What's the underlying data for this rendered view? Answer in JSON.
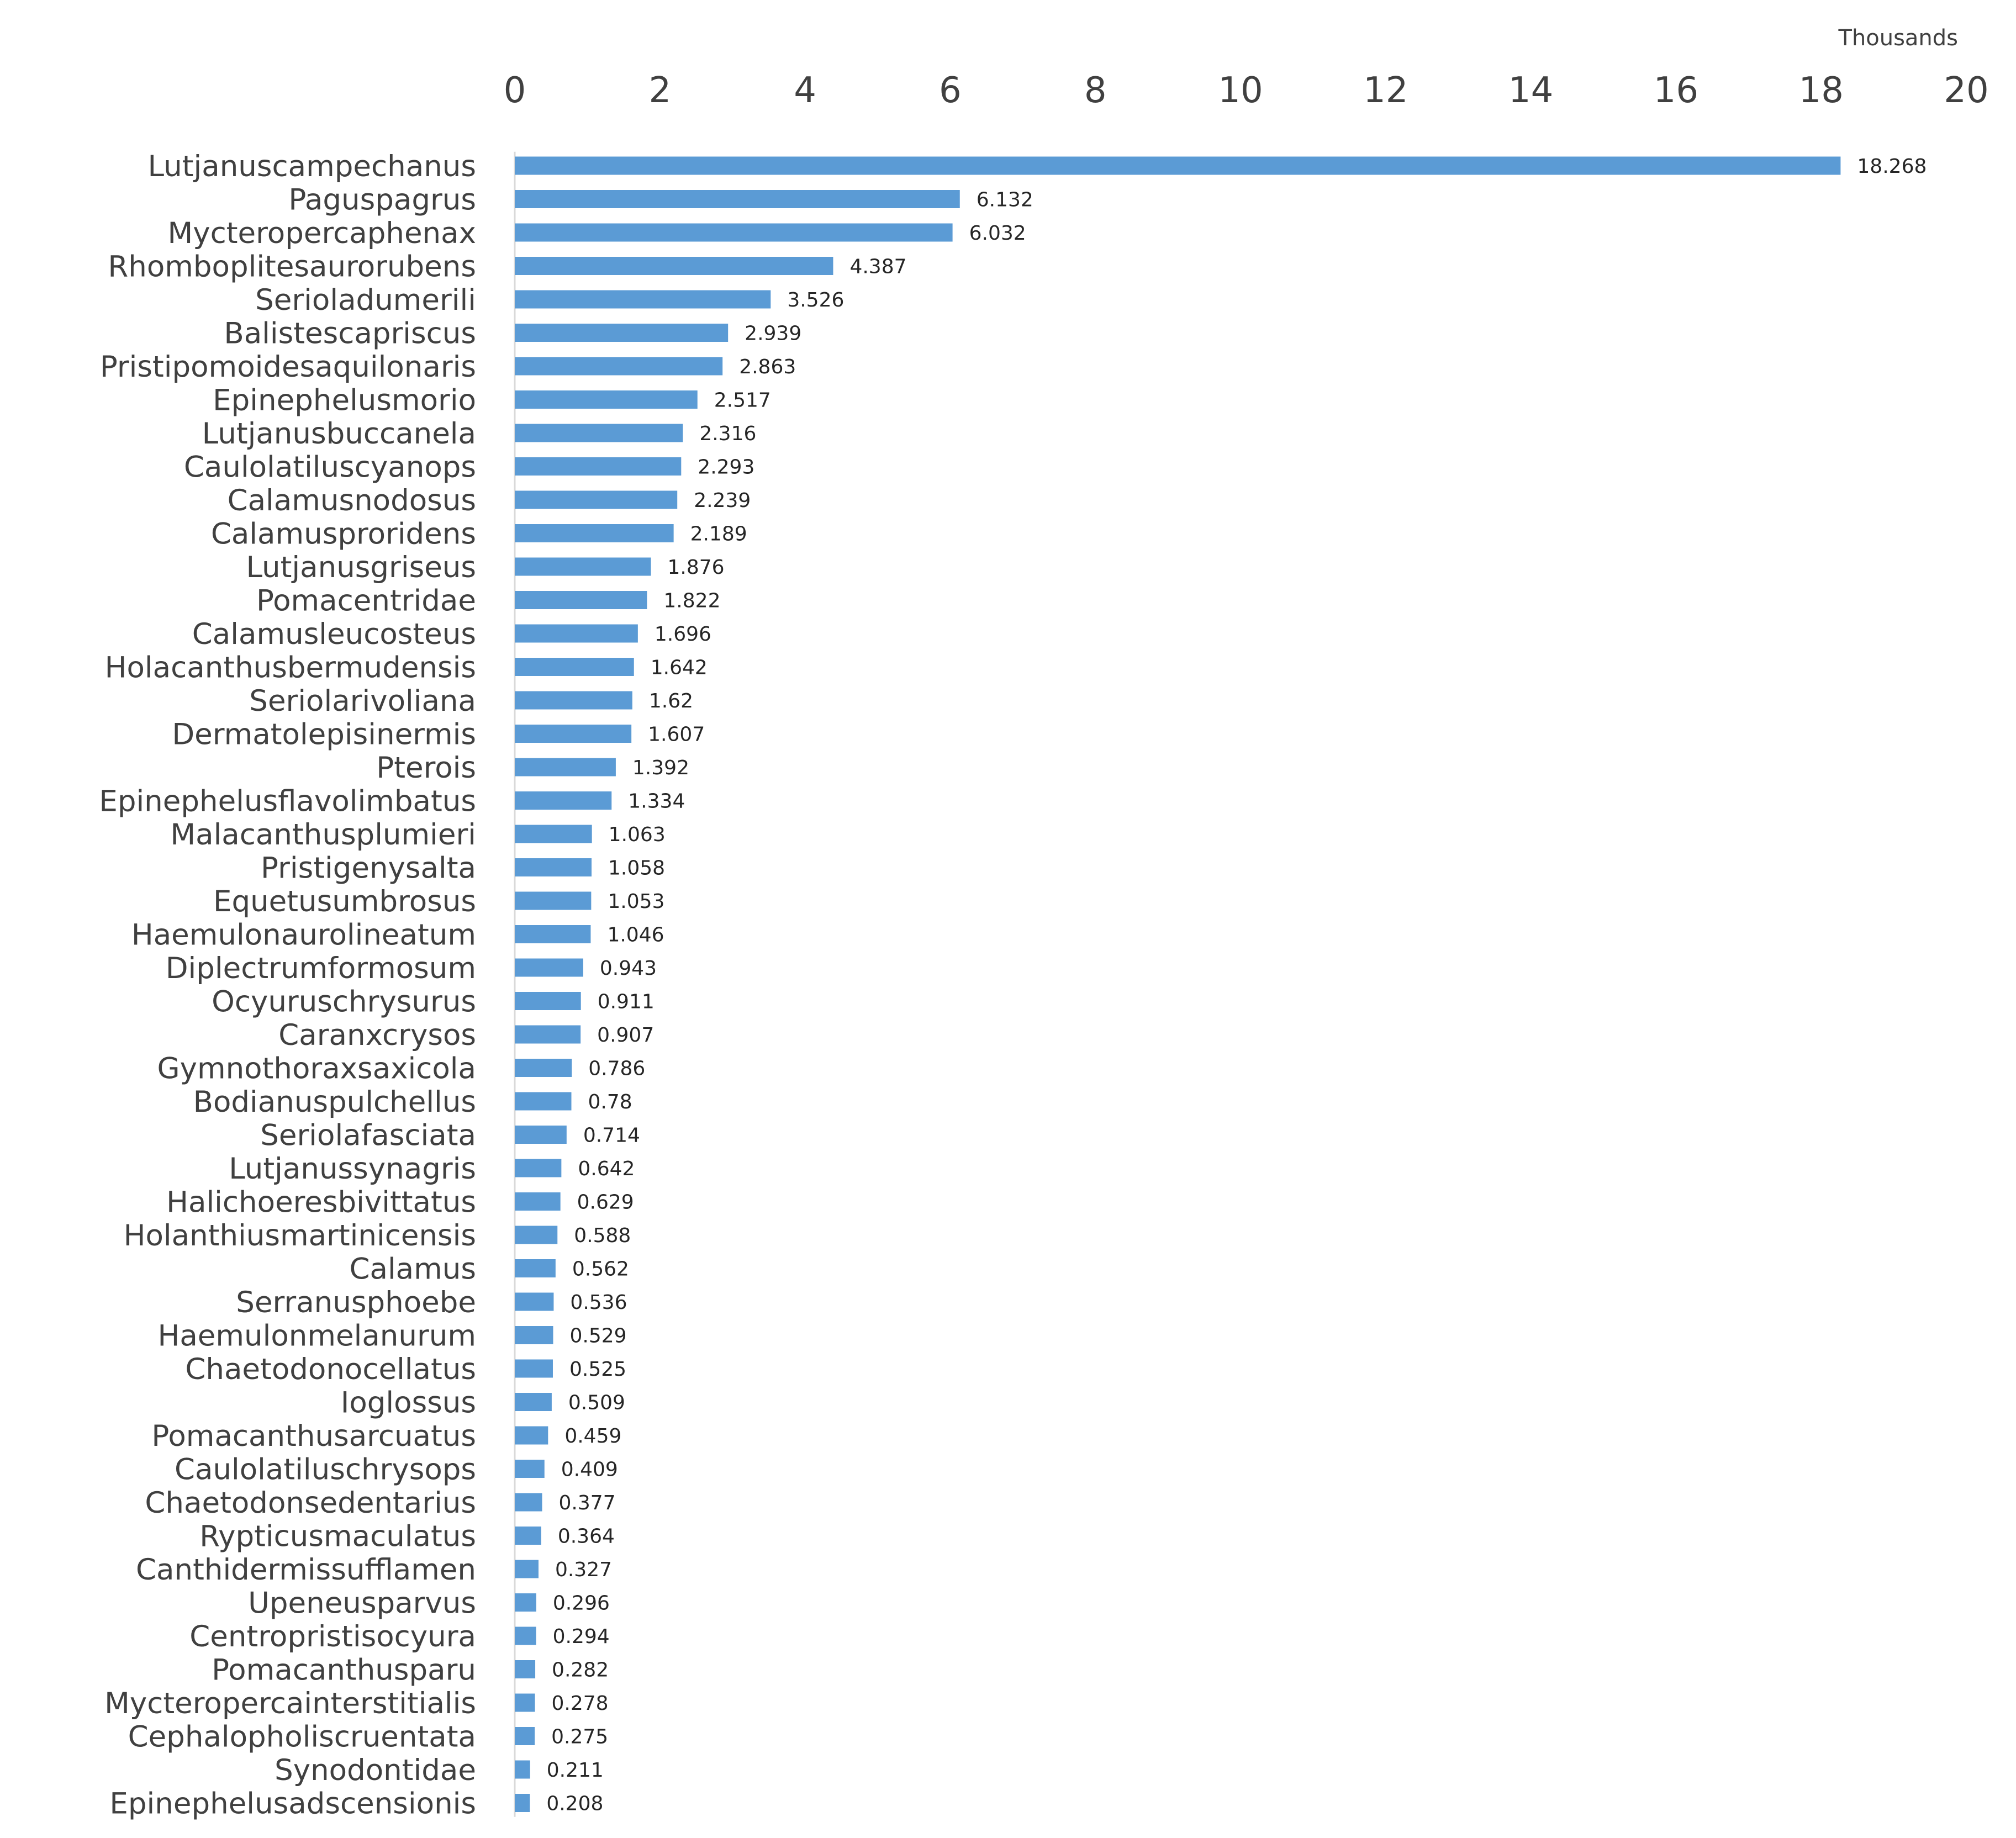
{
  "chart_data": {
    "type": "bar",
    "orientation": "horizontal",
    "axis_unit": "Thousands",
    "xlim": [
      0,
      20
    ],
    "x_ticks": [
      0,
      2,
      4,
      6,
      8,
      10,
      12,
      14,
      16,
      18,
      20
    ],
    "x_axis_position": "top",
    "grid": false,
    "bar_color": "#5b9bd5",
    "categories": [
      "Lutjanuscampechanus",
      "Paguspagrus",
      "Mycteropercaphenax",
      "Rhomboplitesaurorubens",
      "Serioladumerili",
      "Balistescapriscus",
      "Pristipomoidesaquilonaris",
      "Epinephelusmorio",
      "Lutjanusbuccanela",
      "Caulolatiluscyanops",
      "Calamusnodosus",
      "Calamusproridens",
      "Lutjanusgriseus",
      "Pomacentridae",
      "Calamusleucosteus",
      "Holacanthusbermudensis",
      "Seriolarivoliana",
      "Dermatolepisinermis",
      "Pterois",
      "Epinephelusflavolimbatus",
      "Malacanthusplumieri",
      "Pristigenysalta",
      "Equetusumbrosus",
      "Haemulonaurolineatum",
      "Diplectrumformosum",
      "Ocyuruschrysurus",
      "Caranxcrysos",
      "Gymnothoraxsaxicola",
      "Bodianuspulchellus",
      "Seriolafasciata",
      "Lutjanussynagris",
      "Halichoeresbivittatus",
      "Holanthiusmartinicensis",
      "Calamus",
      "Serranusphoebe",
      "Haemulonmelanurum",
      "Chaetodonocellatus",
      "Ioglossus",
      "Pomacanthusarcuatus",
      "Caulolatiluschrysops",
      "Chaetodonsedentarius",
      "Rypticusmaculatus",
      "Canthidermissufflamen",
      "Upeneusparvus",
      "Centropristisocyura",
      "Pomacanthusparu",
      "Mycteropercainterstitialis",
      "Cephalopholiscruentata",
      "Synodontidae",
      "Epinephelusadscensionis"
    ],
    "values": [
      18.268,
      6.132,
      6.032,
      4.387,
      3.526,
      2.939,
      2.863,
      2.517,
      2.316,
      2.293,
      2.239,
      2.189,
      1.876,
      1.822,
      1.696,
      1.642,
      1.62,
      1.607,
      1.392,
      1.334,
      1.063,
      1.058,
      1.053,
      1.046,
      0.943,
      0.911,
      0.907,
      0.786,
      0.78,
      0.714,
      0.642,
      0.629,
      0.588,
      0.562,
      0.536,
      0.529,
      0.525,
      0.509,
      0.459,
      0.409,
      0.377,
      0.364,
      0.327,
      0.296,
      0.294,
      0.282,
      0.278,
      0.275,
      0.211,
      0.208
    ],
    "data_labels": [
      "18.268",
      "6.132",
      "6.032",
      "4.387",
      "3.526",
      "2.939",
      "2.863",
      "2.517",
      "2.316",
      "2.293",
      "2.239",
      "2.189",
      "1.876",
      "1.822",
      "1.696",
      "1.642",
      "1.62",
      "1.607",
      "1.392",
      "1.334",
      "1.063",
      "1.058",
      "1.053",
      "1.046",
      "0.943",
      "0.911",
      "0.907",
      "0.786",
      "0.78",
      "0.714",
      "0.642",
      "0.629",
      "0.588",
      "0.562",
      "0.536",
      "0.529",
      "0.525",
      "0.509",
      "0.459",
      "0.409",
      "0.377",
      "0.364",
      "0.327",
      "0.296",
      "0.294",
      "0.282",
      "0.278",
      "0.275",
      "0.211",
      "0.208"
    ]
  }
}
